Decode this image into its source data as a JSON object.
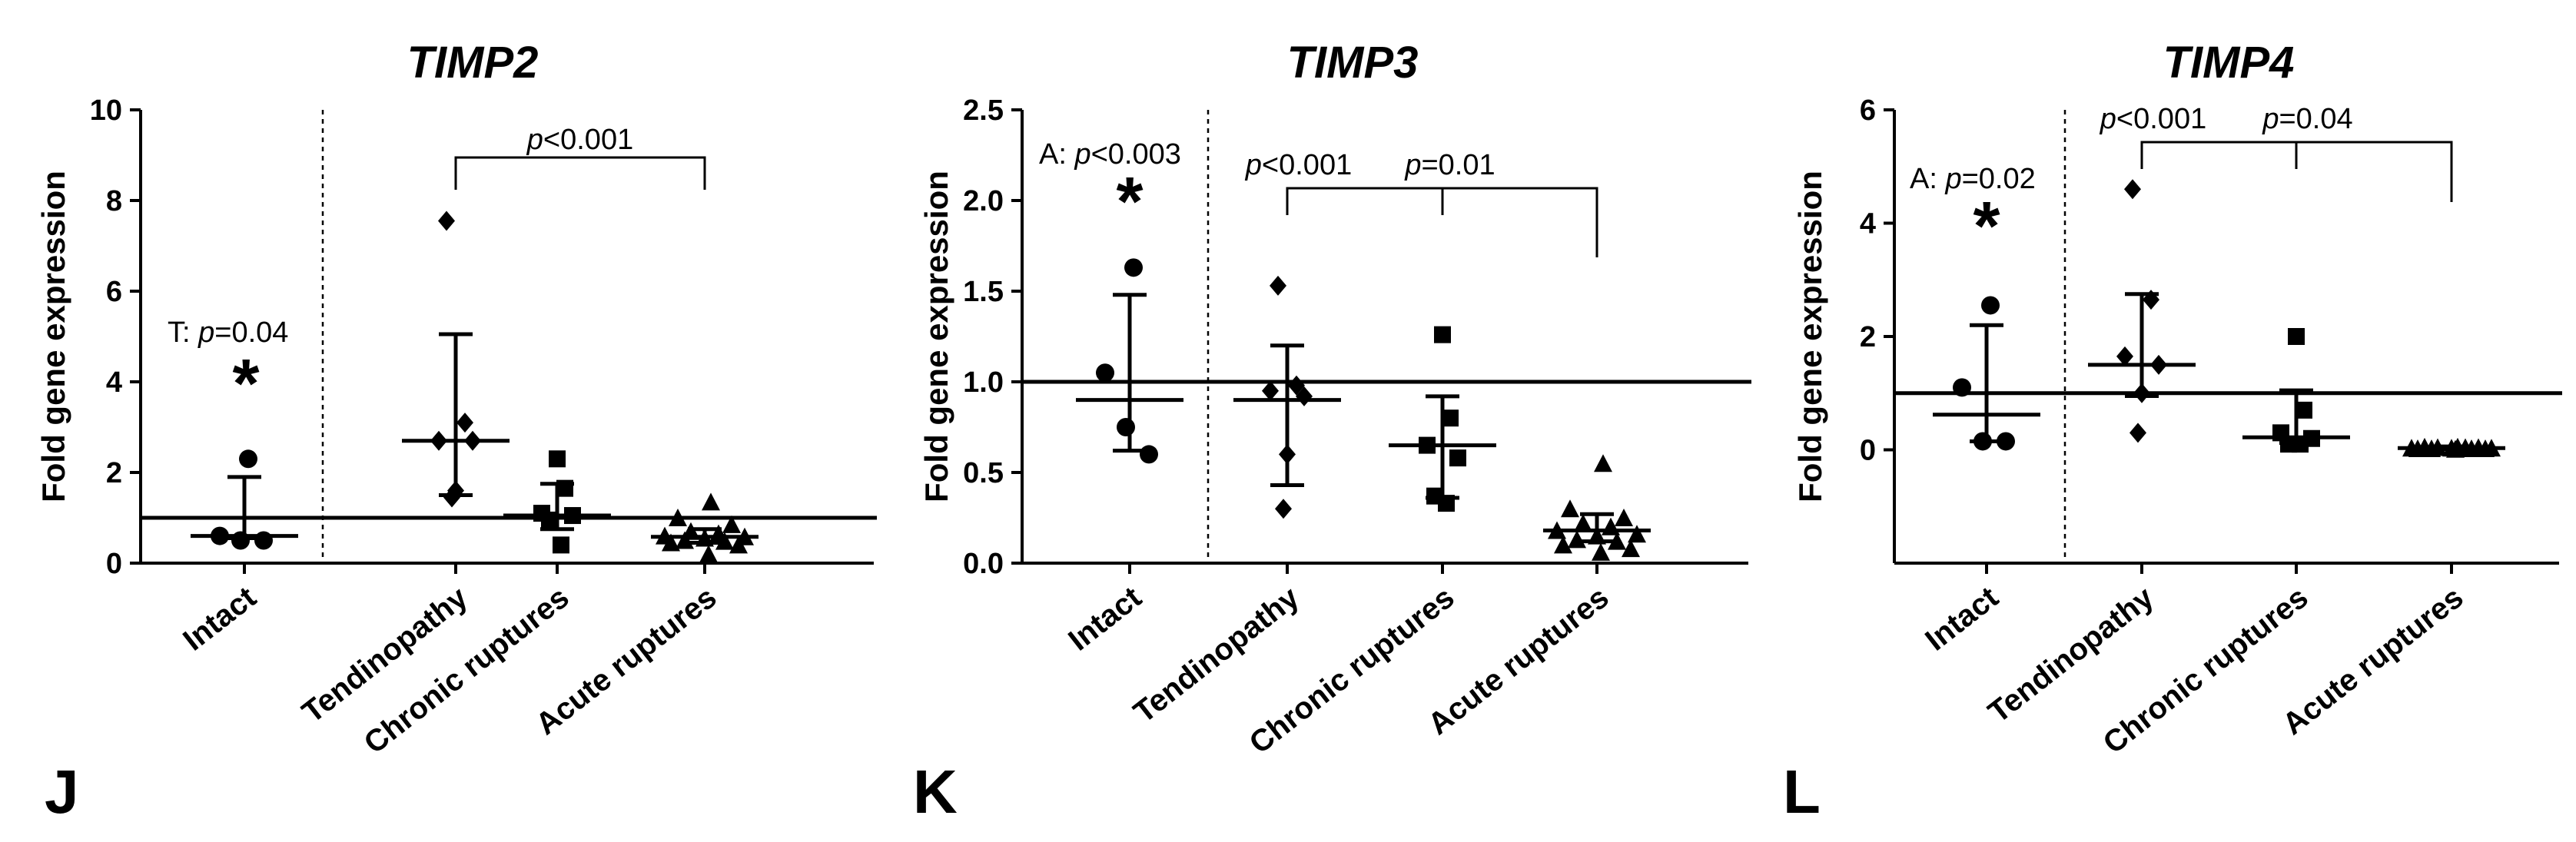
{
  "chart_data": [
    {
      "type": "scatter",
      "panel": "J",
      "title": "TIMP2",
      "ylabel": "Fold gene expression",
      "ylim": [
        0,
        10
      ],
      "yticks": [
        "0",
        "2",
        "4",
        "6",
        "8",
        "10"
      ],
      "reference_line": 1,
      "categories": [
        "Intact",
        "Tendinopathy",
        "Chronic ruptures",
        "Acute ruptures"
      ],
      "groups": [
        {
          "name": "Intact",
          "marker": "circle",
          "points": [
            2.3,
            0.6,
            0.5,
            0.5
          ],
          "median": 0.6,
          "error": [
            0.55,
            1.9
          ]
        },
        {
          "name": "Tendinopathy",
          "marker": "diamond",
          "points": [
            7.55,
            3.1,
            2.7,
            2.7,
            1.6,
            1.45
          ],
          "median": 2.7,
          "error": [
            1.5,
            5.05
          ]
        },
        {
          "name": "Chronic ruptures",
          "marker": "square",
          "points": [
            2.3,
            1.65,
            1.1,
            1.05,
            0.95,
            0.4
          ],
          "median": 1.05,
          "error": [
            0.75,
            1.75
          ]
        },
        {
          "name": "Acute ruptures",
          "marker": "triangle",
          "points": [
            1.35,
            1.0,
            0.85,
            0.7,
            0.65,
            0.6,
            0.58,
            0.55,
            0.5,
            0.48,
            0.45,
            0.4,
            0.2
          ],
          "median": 0.58,
          "error": [
            0.45,
            0.75
          ]
        }
      ],
      "annotations": [
        {
          "prefix": "T: ",
          "italic": "p",
          "rest": "=0.04",
          "star": "*"
        },
        {
          "prefix": "",
          "italic": "p",
          "rest": "<0.001"
        }
      ],
      "brackets": [
        {
          "from": 1,
          "to": 3,
          "label_index": 1
        }
      ]
    },
    {
      "type": "scatter",
      "panel": "K",
      "title": "TIMP3",
      "ylabel": "Fold gene expression",
      "ylim": [
        0,
        2.5
      ],
      "yticks": [
        "0.0",
        "0.5",
        "1.0",
        "1.5",
        "2.0",
        "2.5"
      ],
      "reference_line": 1,
      "categories": [
        "Intact",
        "Tendinopathy",
        "Chronic ruptures",
        "Acute ruptures"
      ],
      "groups": [
        {
          "name": "Intact",
          "marker": "circle",
          "points": [
            1.63,
            1.05,
            0.75,
            0.6
          ],
          "median": 0.9,
          "error": [
            0.62,
            1.48
          ]
        },
        {
          "name": "Tendinopathy",
          "marker": "diamond",
          "points": [
            1.53,
            0.98,
            0.95,
            0.92,
            0.6,
            0.3
          ],
          "median": 0.9,
          "error": [
            0.43,
            1.2
          ]
        },
        {
          "name": "Chronic ruptures",
          "marker": "square",
          "points": [
            1.26,
            0.8,
            0.65,
            0.58,
            0.37,
            0.33
          ],
          "median": 0.65,
          "error": [
            0.36,
            0.92
          ]
        },
        {
          "name": "Acute ruptures",
          "marker": "triangle",
          "points": [
            0.55,
            0.3,
            0.25,
            0.22,
            0.2,
            0.18,
            0.16,
            0.15,
            0.13,
            0.12,
            0.1,
            0.08,
            0.06
          ],
          "median": 0.18,
          "error": [
            0.12,
            0.27
          ]
        }
      ],
      "annotations": [
        {
          "prefix": "A: ",
          "italic": "p",
          "rest": "<0.003",
          "star": "*"
        },
        {
          "prefix": "",
          "italic": "p",
          "rest": "<0.001"
        },
        {
          "prefix": "",
          "italic": "p",
          "rest": "=0.01"
        }
      ],
      "brackets": [
        {
          "from": 1,
          "to": 3,
          "mid": 2
        }
      ]
    },
    {
      "type": "scatter",
      "panel": "L",
      "title": "TIMP4",
      "ylabel": "Fold gene expression",
      "ylim": [
        -2,
        6
      ],
      "yticks": [
        "0",
        "2",
        "4",
        "6"
      ],
      "ytick_values": [
        0,
        2,
        4,
        6
      ],
      "reference_line": 1,
      "categories": [
        "Intact",
        "Tendinopathy",
        "Chronic ruptures",
        "Acute ruptures"
      ],
      "groups": [
        {
          "name": "Intact",
          "marker": "circle",
          "points": [
            2.55,
            1.1,
            0.15,
            0.15
          ],
          "median": 0.62,
          "error": [
            0.15,
            2.2
          ]
        },
        {
          "name": "Tendinopathy",
          "marker": "diamond",
          "points": [
            4.6,
            2.65,
            1.65,
            1.5,
            1.0,
            0.3
          ],
          "median": 1.5,
          "error": [
            0.95,
            2.75
          ]
        },
        {
          "name": "Chronic ruptures",
          "marker": "square",
          "points": [
            2.0,
            0.7,
            0.3,
            0.2,
            0.1,
            0.1
          ],
          "median": 0.22,
          "error": [
            0.12,
            1.05
          ]
        },
        {
          "name": "Acute ruptures",
          "marker": "triangle",
          "points": [
            0.05,
            0.05,
            0.04,
            0.04,
            0.04,
            0.03,
            0.03,
            0.03,
            0.02,
            0.02,
            0.02,
            0.02,
            0.01
          ],
          "median": 0.03,
          "error": [
            0.01,
            0.06
          ]
        }
      ],
      "annotations": [
        {
          "prefix": "A: ",
          "italic": "p",
          "rest": "=0.02",
          "star": "*"
        },
        {
          "prefix": "",
          "italic": "p",
          "rest": "<0.001"
        },
        {
          "prefix": "",
          "italic": "p",
          "rest": "=0.04"
        }
      ],
      "brackets": [
        {
          "from": 1,
          "to": 3,
          "mid": 2
        }
      ]
    }
  ]
}
